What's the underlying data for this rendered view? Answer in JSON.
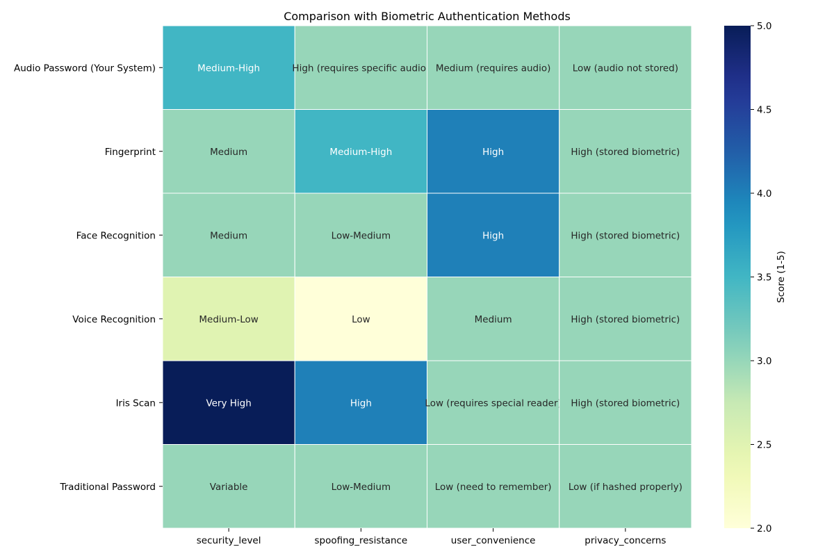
{
  "chart_data": {
    "type": "heatmap",
    "title": "Comparison with Biometric Authentication Methods",
    "rows": [
      "Audio Password (Your System)",
      "Fingerprint",
      "Face Recognition",
      "Voice Recognition",
      "Iris Scan",
      "Traditional Password"
    ],
    "columns": [
      "security_level",
      "spoofing_resistance",
      "user_convenience",
      "privacy_concerns"
    ],
    "values": [
      [
        3.5,
        3.0,
        3.0,
        3.0
      ],
      [
        3.0,
        3.5,
        4.0,
        3.0
      ],
      [
        3.0,
        3.0,
        4.0,
        3.0
      ],
      [
        2.5,
        2.0,
        3.0,
        3.0
      ],
      [
        5.0,
        4.0,
        3.0,
        3.0
      ],
      [
        3.0,
        3.0,
        3.0,
        3.0
      ]
    ],
    "annotations": [
      [
        "Medium-High",
        "High (requires specific audio)",
        "Medium (requires audio)",
        "Low (audio not stored)"
      ],
      [
        "Medium",
        "Medium-High",
        "High",
        "High (stored biometric)"
      ],
      [
        "Medium",
        "Low-Medium",
        "High",
        "High (stored biometric)"
      ],
      [
        "Medium-Low",
        "Low",
        "Medium",
        "High (stored biometric)"
      ],
      [
        "Very High",
        "High",
        "Low (requires special reader)",
        "High (stored biometric)"
      ],
      [
        "Variable",
        "Low-Medium",
        "Low (need to remember)",
        "Low (if hashed properly)"
      ]
    ],
    "colorbar": {
      "label": "Score (1-5)",
      "range": [
        2.0,
        5.0
      ],
      "ticks": [
        "2.0",
        "2.5",
        "3.0",
        "3.5",
        "4.0",
        "4.5",
        "5.0"
      ],
      "colormap": "YlGnBu"
    }
  }
}
